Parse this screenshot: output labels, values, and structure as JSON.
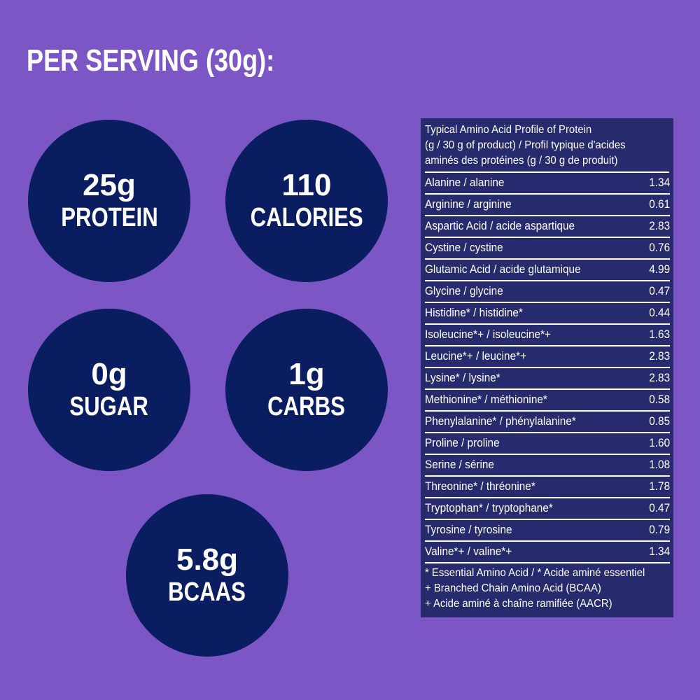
{
  "title": "PER SERVING (30g):",
  "stats": [
    {
      "value": "25g",
      "label": "PROTEIN"
    },
    {
      "value": "110",
      "label": "CALORIES"
    },
    {
      "value": "0g",
      "label": "SUGAR"
    },
    {
      "value": "1g",
      "label": "CARBS"
    },
    {
      "value": "5.8g",
      "label": "BCAAS"
    }
  ],
  "table": {
    "header": [
      "Typical Amino Acid Profile of Protein",
      "(g / 30 g of product) / Profil typique d'acides",
      "aminés des protéines (g / 30 g de produit)"
    ],
    "rows": [
      {
        "name": "Alanine / alanine",
        "value": "1.34"
      },
      {
        "name": "Arginine / arginine",
        "value": "0.61"
      },
      {
        "name": "Aspartic Acid / acide aspartique",
        "value": "2.83"
      },
      {
        "name": "Cystine / cystine",
        "value": "0.76"
      },
      {
        "name": "Glutamic Acid / acide glutamique",
        "value": "4.99"
      },
      {
        "name": "Glycine / glycine",
        "value": "0.47"
      },
      {
        "name": "Histidine* / histidine*",
        "value": "0.44"
      },
      {
        "name": "Isoleucine*+ / isoleucine*+",
        "value": "1.63"
      },
      {
        "name": "Leucine*+ / leucine*+",
        "value": "2.83"
      },
      {
        "name": "Lysine* / lysine*",
        "value": "2.83"
      },
      {
        "name": "Methionine* / méthionine*",
        "value": "0.58"
      },
      {
        "name": "Phenylalanine* / phénylalanine*",
        "value": "0.85"
      },
      {
        "name": "Proline / proline",
        "value": "1.60"
      },
      {
        "name": "Serine / sérine",
        "value": "1.08"
      },
      {
        "name": "Threonine* / thréonine*",
        "value": "1.78"
      },
      {
        "name": "Tryptophan* / tryptophane*",
        "value": "0.47"
      },
      {
        "name": "Tyrosine / tyrosine",
        "value": "0.79"
      },
      {
        "name": "Valine*+ / valine*+",
        "value": "1.34"
      }
    ],
    "footnotes": [
      "* Essential Amino Acid / * Acide aminé essentiel",
      "+ Branched Chain Amino Acid (BCAA)",
      "+ Acide aminé à chaîne ramifiée (AACR)"
    ]
  },
  "colors": {
    "background": "#7d56c5",
    "circle": "#0b1d61",
    "table": "#272b6d"
  }
}
